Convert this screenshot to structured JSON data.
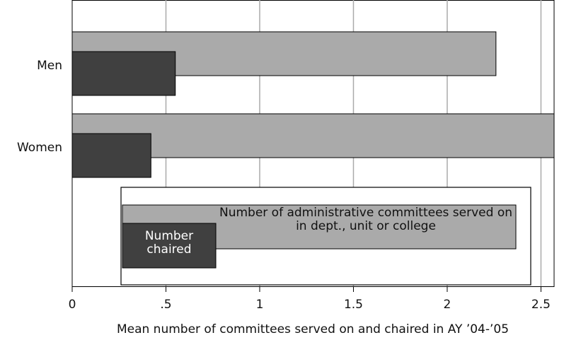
{
  "chart_data": {
    "type": "bar",
    "orientation": "horizontal",
    "x_label": "Mean number of committees served on and chaired in AY ’04-’05",
    "categories": [
      "Men",
      "Women"
    ],
    "series": [
      {
        "name": "Number of administrative committees served on in dept., unit or college",
        "color": "#aaaaaa",
        "values": [
          2.26,
          2.57
        ]
      },
      {
        "name": "Number chaired",
        "color": "#404040",
        "values": [
          0.55,
          0.42
        ]
      }
    ],
    "xlim": [
      0,
      2.57
    ],
    "xticks": [
      0,
      {
        "value": 0.5,
        "label": ".5"
      },
      1,
      1.5,
      2,
      2.5
    ],
    "grid": true
  }
}
